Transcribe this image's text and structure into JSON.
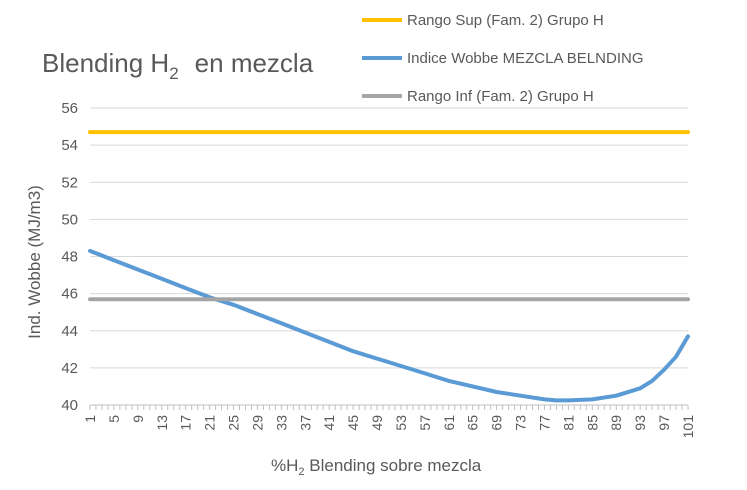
{
  "chart_data": {
    "type": "line",
    "title": "Blending H",
    "title_sub": "2",
    "title_suffix": "en mezcla",
    "xlabel_prefix": "%H",
    "xlabel_sub": "2",
    "xlabel_suffix": " Blending sobre mezcla",
    "ylabel": "Ind. Wobbe (MJ/m3)",
    "ylim": [
      40,
      56
    ],
    "yticks": [
      40,
      42,
      44,
      46,
      48,
      50,
      52,
      54,
      56
    ],
    "xlim": [
      1,
      101
    ],
    "xticks": [
      1,
      5,
      9,
      13,
      17,
      21,
      25,
      29,
      33,
      37,
      41,
      45,
      49,
      53,
      57,
      61,
      65,
      69,
      73,
      77,
      81,
      85,
      89,
      93,
      97,
      101
    ],
    "grid": true,
    "legend_position": "top-right",
    "series": [
      {
        "name": "Rango Sup (Fam. 2) Grupo H",
        "color": "#FFC000",
        "x": [
          1,
          101
        ],
        "values": [
          54.7,
          54.7
        ]
      },
      {
        "name": "Indice Wobbe MEZCLA BELNDING",
        "color": "#5B9BD5",
        "x": [
          1,
          5,
          9,
          13,
          17,
          21,
          25,
          29,
          33,
          37,
          41,
          45,
          49,
          53,
          57,
          61,
          65,
          69,
          73,
          77,
          79,
          81,
          85,
          89,
          93,
          95,
          97,
          99,
          101
        ],
        "values": [
          48.3,
          47.8,
          47.3,
          46.8,
          46.3,
          45.8,
          45.4,
          44.9,
          44.4,
          43.9,
          43.4,
          42.9,
          42.5,
          42.1,
          41.7,
          41.3,
          41.0,
          40.7,
          40.5,
          40.3,
          40.25,
          40.25,
          40.3,
          40.5,
          40.9,
          41.3,
          41.9,
          42.6,
          43.7
        ]
      },
      {
        "name": "Rango Inf (Fam. 2) Grupo H",
        "color": "#A5A5A5",
        "x": [
          1,
          101
        ],
        "values": [
          45.7,
          45.7
        ]
      }
    ]
  }
}
